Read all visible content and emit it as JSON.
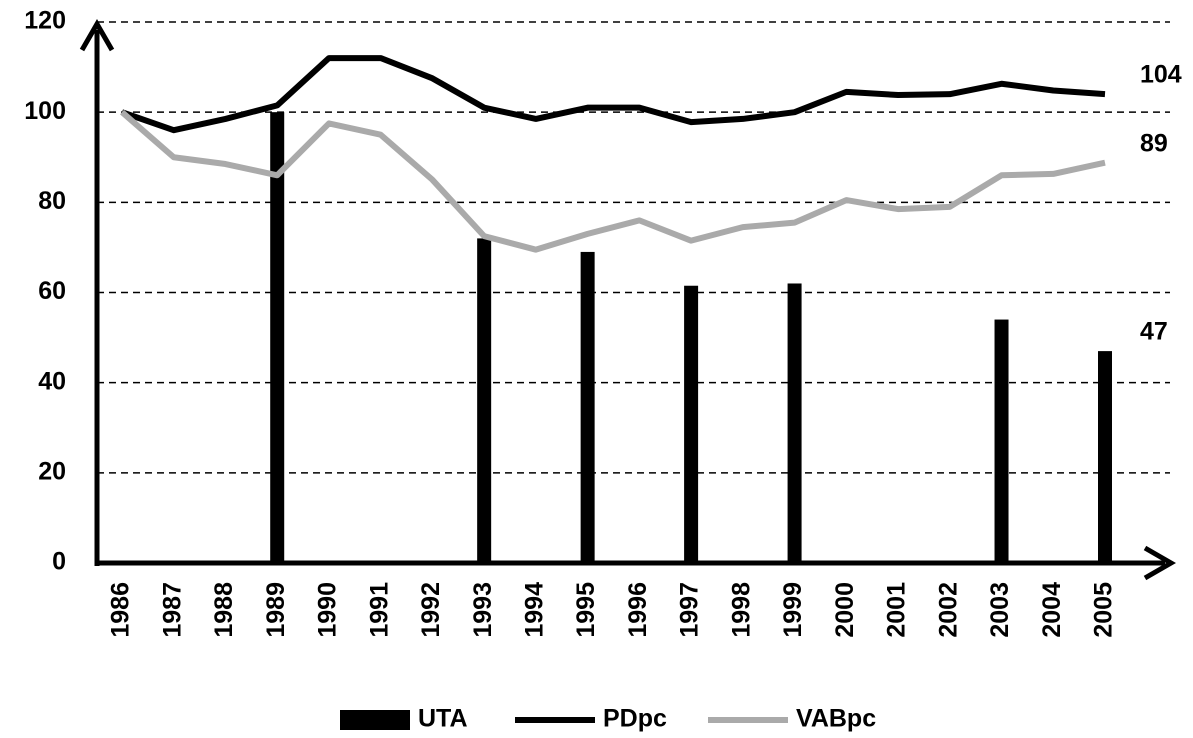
{
  "chart_data": {
    "type": "combo",
    "categories": [
      "1986",
      "1987",
      "1988",
      "1989",
      "1990",
      "1991",
      "1992",
      "1993",
      "1994",
      "1995",
      "1996",
      "1997",
      "1998",
      "1999",
      "2000",
      "2001",
      "2002",
      "2003",
      "2004",
      "2005"
    ],
    "series": [
      {
        "name": "UTA",
        "type": "bar",
        "color": "#000000",
        "values": [
          null,
          null,
          null,
          100,
          null,
          null,
          null,
          72,
          null,
          69,
          null,
          61.5,
          null,
          62,
          null,
          null,
          null,
          54,
          null,
          47
        ],
        "value_labels": [
          null,
          null,
          null,
          null,
          null,
          null,
          null,
          null,
          null,
          null,
          null,
          null,
          null,
          null,
          null,
          null,
          null,
          null,
          null,
          "47"
        ]
      },
      {
        "name": "PDpc",
        "type": "line",
        "color": "#000000",
        "values": [
          100,
          96,
          98.5,
          101.5,
          112,
          112,
          107.5,
          101,
          98.5,
          101,
          101,
          97.8,
          98.5,
          100,
          104.5,
          103.8,
          104,
          106.3,
          104.8,
          104
        ],
        "value_labels": [
          null,
          null,
          null,
          null,
          null,
          null,
          null,
          null,
          null,
          null,
          null,
          null,
          null,
          null,
          null,
          null,
          null,
          null,
          null,
          "104"
        ]
      },
      {
        "name": "VABpc",
        "type": "line",
        "color": "#aaaaaa",
        "values": [
          100,
          90,
          88.5,
          86,
          97.5,
          95,
          85,
          72.5,
          69.5,
          73,
          76,
          71.5,
          74.5,
          75.5,
          80.5,
          78.5,
          79,
          86,
          86.3,
          88.8
        ],
        "value_labels": [
          null,
          null,
          null,
          null,
          null,
          null,
          null,
          null,
          null,
          null,
          null,
          null,
          null,
          null,
          null,
          null,
          null,
          null,
          null,
          "89"
        ]
      }
    ],
    "ylim": [
      0,
      120
    ],
    "yticks": [
      0,
      20,
      40,
      60,
      80,
      100,
      120
    ],
    "grid": true,
    "legend": "bottom"
  }
}
